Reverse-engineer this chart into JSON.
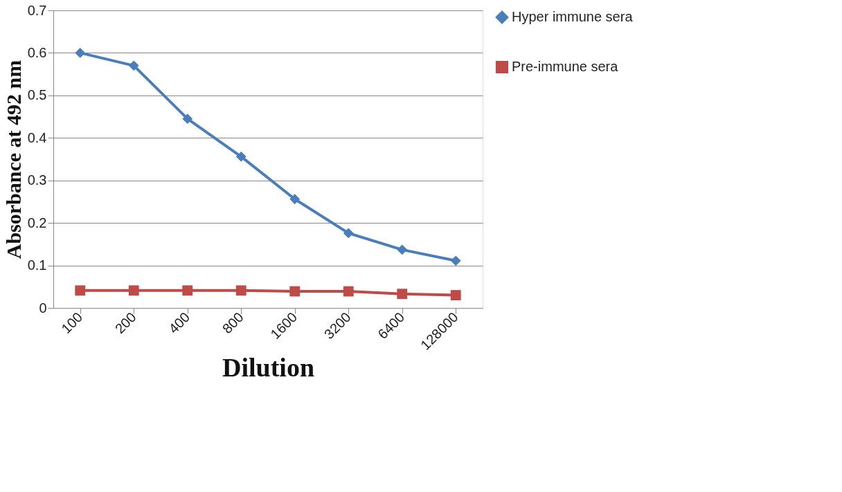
{
  "chart_data": {
    "type": "line",
    "xlabel": "Dilution",
    "ylabel": "Absorbance at 492 nm",
    "categories": [
      "100",
      "200",
      "400",
      "800",
      "1600",
      "3200",
      "6400",
      "128000"
    ],
    "series": [
      {
        "name": "Hyper immune sera",
        "color": "#4a7ebb",
        "marker": "diamond",
        "values": [
          0.6,
          0.57,
          0.445,
          0.356,
          0.256,
          0.176,
          0.137,
          0.111
        ]
      },
      {
        "name": "Pre-immune sera",
        "color": "#be4b48",
        "marker": "square",
        "values": [
          0.041,
          0.041,
          0.041,
          0.041,
          0.039,
          0.039,
          0.033,
          0.03
        ]
      }
    ],
    "ylim": [
      0,
      0.7
    ],
    "yticks": [
      0,
      0.1,
      0.2,
      0.3,
      0.4,
      0.5,
      0.6,
      0.7
    ],
    "grid": "y",
    "legend": "right",
    "line_style": "solid"
  }
}
